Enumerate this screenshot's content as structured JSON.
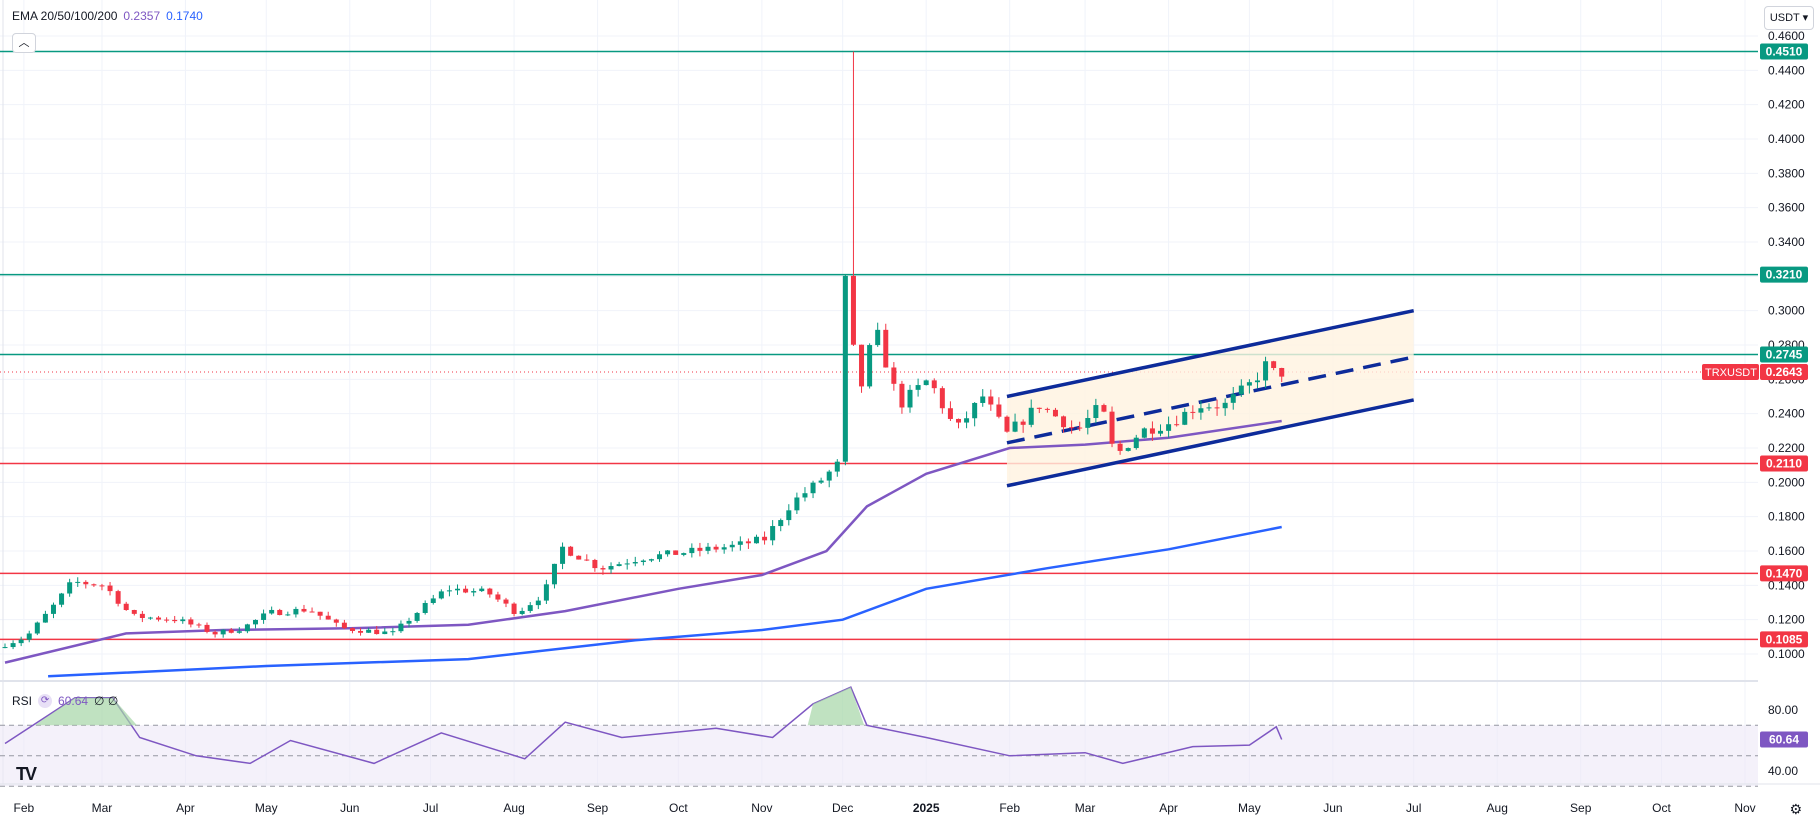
{
  "header": {
    "indicator_label": "EMA 20/50/100/200",
    "ema_value_1": "0.2357",
    "ema_value_2": "0.1740"
  },
  "currency_selector": "USDT",
  "collapse_icon": "chevron-up-icon",
  "settings_icon": "gear-icon",
  "logo_text": "TV",
  "rsi": {
    "label": "RSI",
    "value": "60.64",
    "extras": "∅ ∅",
    "axis_labels": [
      "80.00",
      "40.00"
    ],
    "current_label": "60.64"
  },
  "colors": {
    "up": "#089981",
    "down": "#f23645",
    "ema50": "#7e57c2",
    "ema200": "#2962ff",
    "channel": "#0d2b9a",
    "support_green": "#089981",
    "support_red": "#f23645",
    "rsi": "#7e57c2"
  },
  "chart_data": {
    "type": "candlestick",
    "symbol": "TRXUSDT",
    "y_axis_ticks": [
      "0.1000",
      "0.1200",
      "0.1400",
      "0.1600",
      "0.1800",
      "0.2000",
      "0.2200",
      "0.2400",
      "0.2600",
      "0.2800",
      "0.3000",
      "0.3200",
      "0.3400",
      "0.3600",
      "0.3800",
      "0.4000",
      "0.4200",
      "0.4400",
      "0.4600"
    ],
    "x_axis_labels": [
      "Feb",
      "Mar",
      "Apr",
      "May",
      "Jun",
      "Jul",
      "Aug",
      "Sep",
      "Oct",
      "Nov",
      "Dec",
      "2025",
      "Feb",
      "Mar",
      "Apr",
      "May",
      "Jun",
      "Jul",
      "Aug",
      "Sep",
      "Oct",
      "Nov"
    ],
    "horizontal_levels": [
      {
        "value": 0.451,
        "label": "0.4510",
        "color": "green"
      },
      {
        "value": 0.321,
        "label": "0.3210",
        "color": "green"
      },
      {
        "value": 0.2745,
        "label": "0.2745",
        "color": "green"
      },
      {
        "value": 0.211,
        "label": "0.2110",
        "color": "red"
      },
      {
        "value": 0.147,
        "label": "0.1470",
        "color": "red"
      },
      {
        "value": 0.1085,
        "label": "0.1085",
        "color": "red"
      }
    ],
    "current_price": {
      "symbol": "TRXUSDT",
      "value": "0.2643"
    },
    "price_path": [
      [
        "2024-01-25",
        0.104
      ],
      [
        "2024-02-05",
        0.11
      ],
      [
        "2024-02-15",
        0.128
      ],
      [
        "2024-02-22",
        0.142
      ],
      [
        "2024-03-05",
        0.14
      ],
      [
        "2024-03-15",
        0.122
      ],
      [
        "2024-04-01",
        0.12
      ],
      [
        "2024-04-15",
        0.112
      ],
      [
        "2024-04-25",
        0.115
      ],
      [
        "2024-05-05",
        0.124
      ],
      [
        "2024-05-20",
        0.126
      ],
      [
        "2024-06-01",
        0.115
      ],
      [
        "2024-06-20",
        0.112
      ],
      [
        "2024-07-01",
        0.127
      ],
      [
        "2024-07-10",
        0.138
      ],
      [
        "2024-07-25",
        0.136
      ],
      [
        "2024-08-05",
        0.124
      ],
      [
        "2024-08-15",
        0.135
      ],
      [
        "2024-08-22",
        0.162
      ],
      [
        "2024-09-05",
        0.15
      ],
      [
        "2024-09-20",
        0.156
      ],
      [
        "2024-10-10",
        0.16
      ],
      [
        "2024-10-25",
        0.163
      ],
      [
        "2024-11-05",
        0.167
      ],
      [
        "2024-11-15",
        0.188
      ],
      [
        "2024-11-25",
        0.2
      ],
      [
        "2024-12-02",
        0.21
      ],
      [
        "2024-12-04",
        0.33
      ],
      [
        "2024-12-10",
        0.25
      ],
      [
        "2024-12-16",
        0.29
      ],
      [
        "2024-12-25",
        0.245
      ],
      [
        "2025-01-05",
        0.26
      ],
      [
        "2025-01-15",
        0.23
      ],
      [
        "2025-01-25",
        0.25
      ],
      [
        "2025-02-03",
        0.228
      ],
      [
        "2025-02-15",
        0.245
      ],
      [
        "2025-03-01",
        0.23
      ],
      [
        "2025-03-10",
        0.245
      ],
      [
        "2025-03-15",
        0.215
      ],
      [
        "2025-03-25",
        0.23
      ],
      [
        "2025-04-05",
        0.235
      ],
      [
        "2025-04-15",
        0.245
      ],
      [
        "2025-04-25",
        0.245
      ],
      [
        "2025-05-05",
        0.258
      ],
      [
        "2025-05-11",
        0.27
      ],
      [
        "2025-05-13",
        0.264
      ]
    ],
    "spike_high": 0.451,
    "ema50": [
      [
        "2024-01-25",
        0.095
      ],
      [
        "2024-03-10",
        0.112
      ],
      [
        "2024-04-15",
        0.114
      ],
      [
        "2024-06-01",
        0.115
      ],
      [
        "2024-07-15",
        0.117
      ],
      [
        "2024-08-20",
        0.125
      ],
      [
        "2024-10-01",
        0.138
      ],
      [
        "2024-11-01",
        0.146
      ],
      [
        "2024-11-25",
        0.16
      ],
      [
        "2024-12-10",
        0.186
      ],
      [
        "2025-01-01",
        0.205
      ],
      [
        "2025-02-01",
        0.22
      ],
      [
        "2025-03-01",
        0.222
      ],
      [
        "2025-04-01",
        0.226
      ],
      [
        "2025-05-13",
        0.2357
      ]
    ],
    "ema200": [
      [
        "2024-02-10",
        0.087
      ],
      [
        "2024-05-01",
        0.093
      ],
      [
        "2024-07-15",
        0.097
      ],
      [
        "2024-09-15",
        0.108
      ],
      [
        "2024-11-01",
        0.114
      ],
      [
        "2024-12-01",
        0.12
      ],
      [
        "2025-01-01",
        0.138
      ],
      [
        "2025-02-15",
        0.15
      ],
      [
        "2025-04-01",
        0.161
      ],
      [
        "2025-05-13",
        0.174
      ]
    ],
    "channel": {
      "upper": [
        [
          "2025-01-31",
          0.25
        ],
        [
          "2025-07-01",
          0.3
        ]
      ],
      "mid": [
        [
          "2025-01-31",
          0.223
        ],
        [
          "2025-07-01",
          0.273
        ]
      ],
      "lower": [
        [
          "2025-01-31",
          0.198
        ],
        [
          "2025-07-01",
          0.248
        ]
      ]
    },
    "rsi_path": [
      [
        "2024-01-25",
        58
      ],
      [
        "2024-02-20",
        88
      ],
      [
        "2024-03-05",
        88
      ],
      [
        "2024-03-15",
        62
      ],
      [
        "2024-04-05",
        50
      ],
      [
        "2024-04-25",
        45
      ],
      [
        "2024-05-10",
        60
      ],
      [
        "2024-06-10",
        45
      ],
      [
        "2024-07-05",
        65
      ],
      [
        "2024-08-05",
        48
      ],
      [
        "2024-08-20",
        72
      ],
      [
        "2024-09-10",
        62
      ],
      [
        "2024-10-15",
        68
      ],
      [
        "2024-11-05",
        62
      ],
      [
        "2024-11-20",
        84
      ],
      [
        "2024-12-04",
        95
      ],
      [
        "2024-12-10",
        70
      ],
      [
        "2025-01-01",
        62
      ],
      [
        "2025-02-01",
        50
      ],
      [
        "2025-03-01",
        52
      ],
      [
        "2025-03-15",
        45
      ],
      [
        "2025-04-10",
        56
      ],
      [
        "2025-05-01",
        57
      ],
      [
        "2025-05-11",
        69
      ],
      [
        "2025-05-13",
        60.64
      ]
    ],
    "rsi_levels": [
      70,
      50,
      30
    ]
  }
}
